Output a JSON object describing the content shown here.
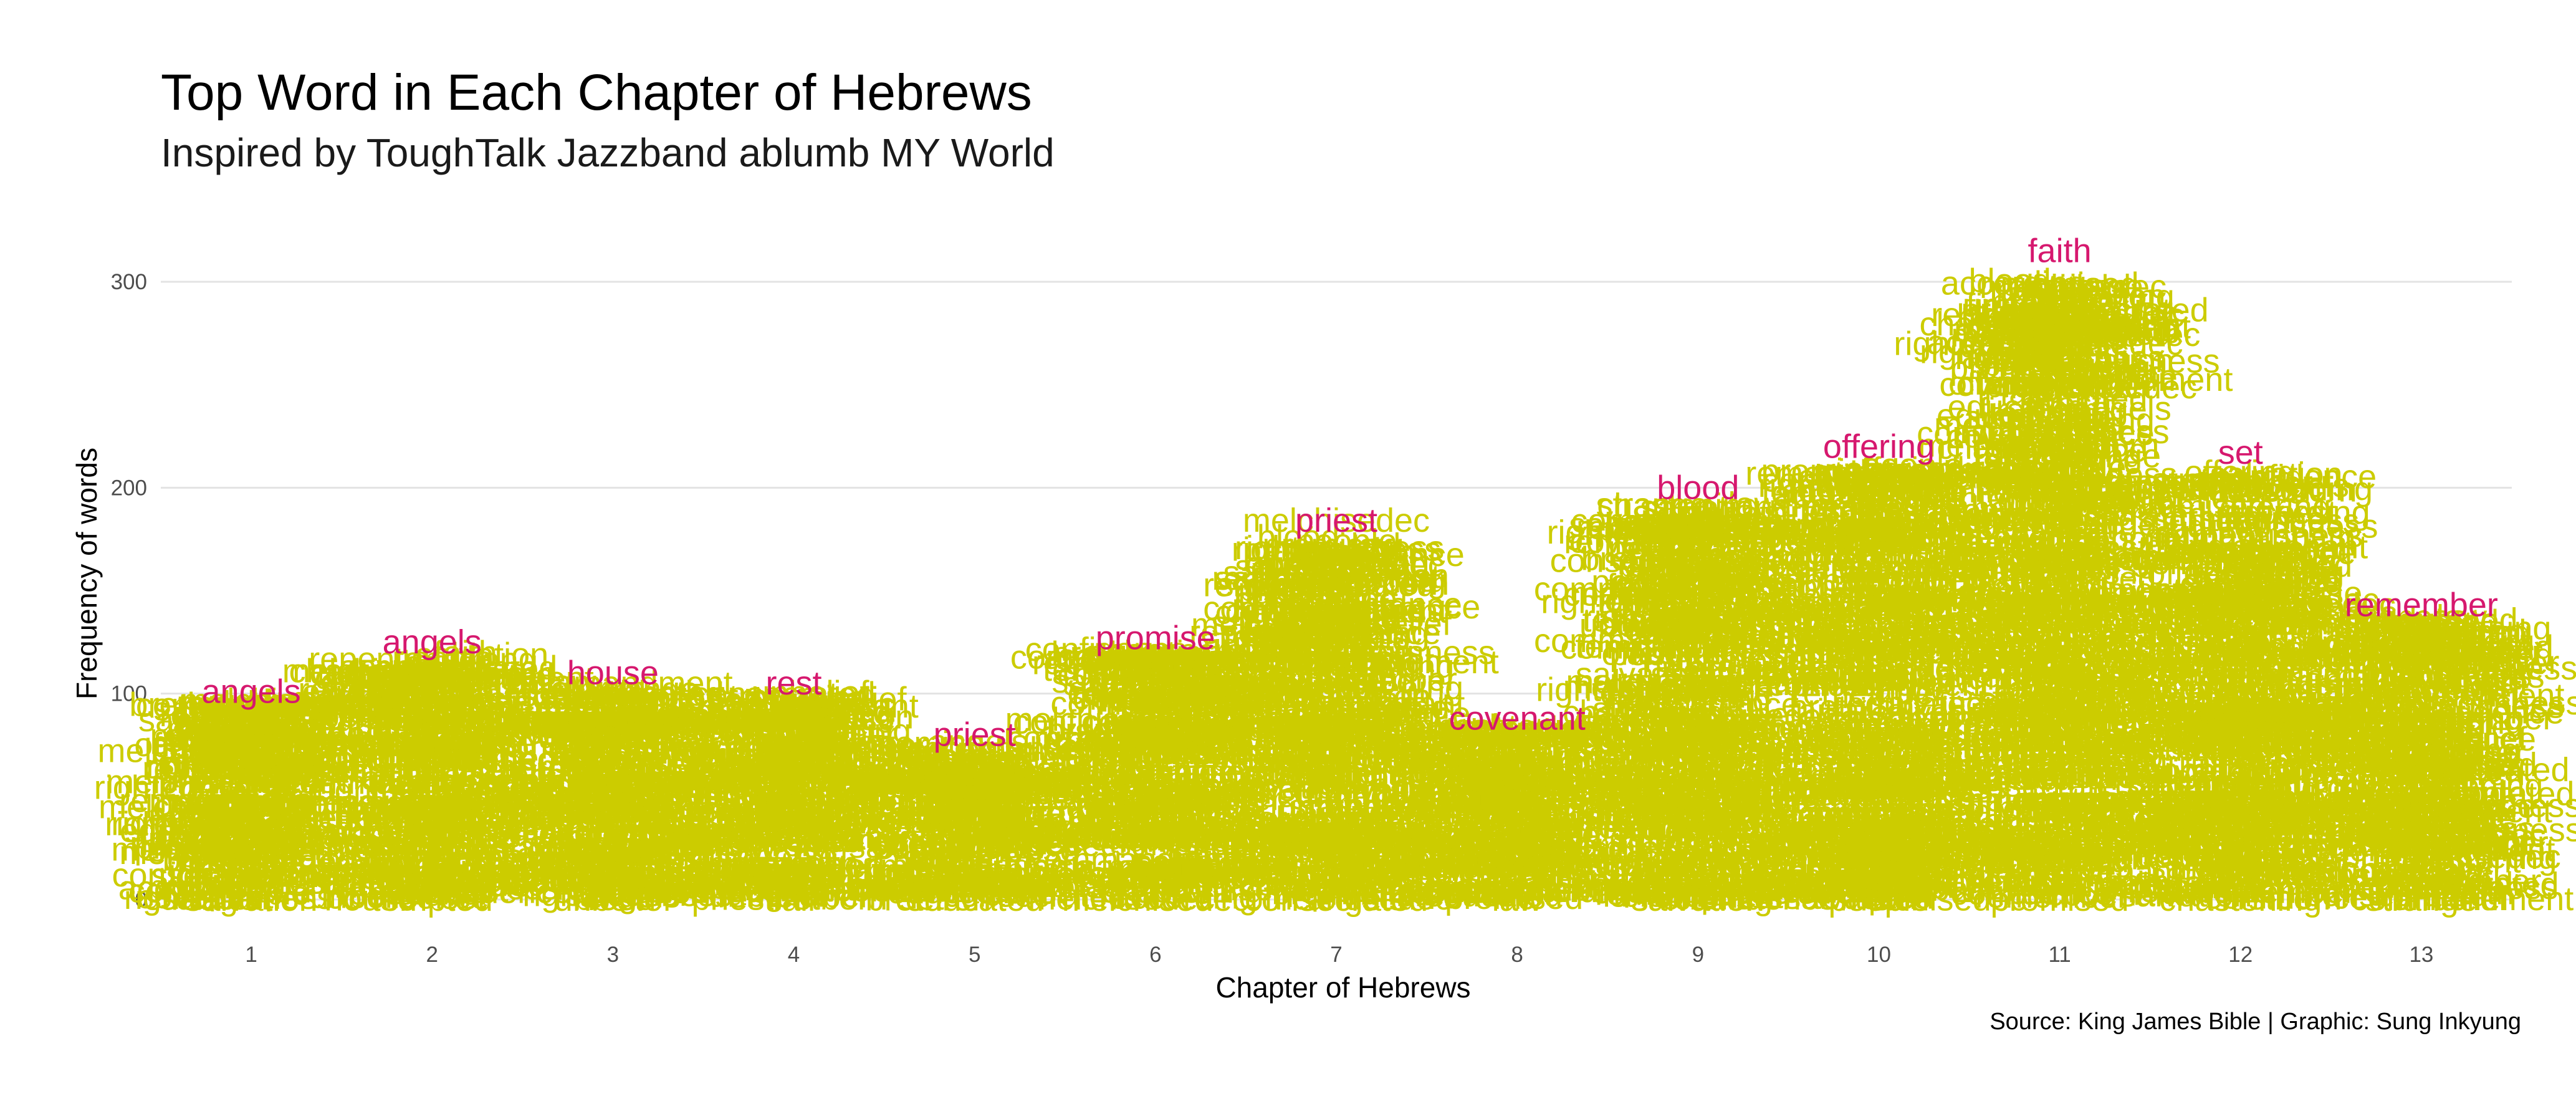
{
  "chart_data": {
    "type": "scatter",
    "title": "Top Word in Each Chapter of Hebrews",
    "subtitle": "Inspired by ToughTalk Jazzband ablumb MY World",
    "xlabel": "Chapter of Hebrews",
    "ylabel": "Frequency of words",
    "caption": "Source: King James Bible | Graphic: Sung Inkyung",
    "categories": [
      "1",
      "2",
      "3",
      "4",
      "5",
      "6",
      "7",
      "8",
      "9",
      "10",
      "11",
      "12",
      "13"
    ],
    "ylim": [
      -10,
      320
    ],
    "yticks": [
      0,
      100,
      200,
      300
    ],
    "grid": true,
    "colors": {
      "words": "#cccc00",
      "top_word": "#d6186e",
      "grid": "#e3e3e3"
    },
    "top_words": [
      {
        "chapter": "1",
        "word": "angels",
        "n": 101
      },
      {
        "chapter": "2",
        "word": "angels",
        "n": 125
      },
      {
        "chapter": "3",
        "word": "house",
        "n": 110
      },
      {
        "chapter": "4",
        "word": "rest",
        "n": 105
      },
      {
        "chapter": "5",
        "word": "priest",
        "n": 80
      },
      {
        "chapter": "6",
        "word": "promise",
        "n": 127
      },
      {
        "chapter": "7",
        "word": "priest",
        "n": 184
      },
      {
        "chapter": "8",
        "word": "covenant",
        "n": 88
      },
      {
        "chapter": "9",
        "word": "blood",
        "n": 200
      },
      {
        "chapter": "10",
        "word": "offering",
        "n": 220
      },
      {
        "chapter": "11",
        "word": "faith",
        "n": 315
      },
      {
        "chapter": "12",
        "word": "set",
        "n": 217
      },
      {
        "chapter": "13",
        "word": "remember",
        "n": 143
      }
    ],
    "background_words": [
      {
        "chapter": "1",
        "word": "firstborn",
        "n": 60
      },
      {
        "chapter": "1",
        "word": "salvation",
        "n": 0
      },
      {
        "chapter": "2",
        "word": "brethren",
        "n": 100
      },
      {
        "chapter": "2",
        "word": "tempted",
        "n": 0
      },
      {
        "chapter": "3",
        "word": "unbelief",
        "n": 0
      },
      {
        "chapter": "3",
        "word": "confidence",
        "n": 85
      },
      {
        "chapter": "4",
        "word": "sabbath",
        "n": 40
      },
      {
        "chapter": "4",
        "word": "fail",
        "n": 0
      },
      {
        "chapter": "5",
        "word": "strong",
        "n": 40
      },
      {
        "chapter": "5",
        "word": "educated",
        "n": 0
      },
      {
        "chapter": "6",
        "word": "repentance",
        "n": 100
      },
      {
        "chapter": "6",
        "word": "melchisedec",
        "n": 0
      },
      {
        "chapter": "7",
        "word": "melchisedec",
        "n": 184
      },
      {
        "chapter": "7",
        "word": "righteousness",
        "n": 170
      },
      {
        "chapter": "7",
        "word": "commandment",
        "n": 140
      },
      {
        "chapter": "7",
        "word": "consecrated",
        "n": 0
      },
      {
        "chapter": "8",
        "word": "law",
        "n": 0
      },
      {
        "chapter": "9",
        "word": "salvation",
        "n": 0
      },
      {
        "chapter": "9",
        "word": "according",
        "n": 160
      },
      {
        "chapter": "10",
        "word": "people",
        "n": 0
      },
      {
        "chapter": "11",
        "word": "righteousness",
        "n": 263
      },
      {
        "chapter": "11",
        "word": "promised",
        "n": 0
      },
      {
        "chapter": "12",
        "word": "chastening",
        "n": 0
      },
      {
        "chapter": "13",
        "word": "strange",
        "n": 0
      }
    ]
  }
}
